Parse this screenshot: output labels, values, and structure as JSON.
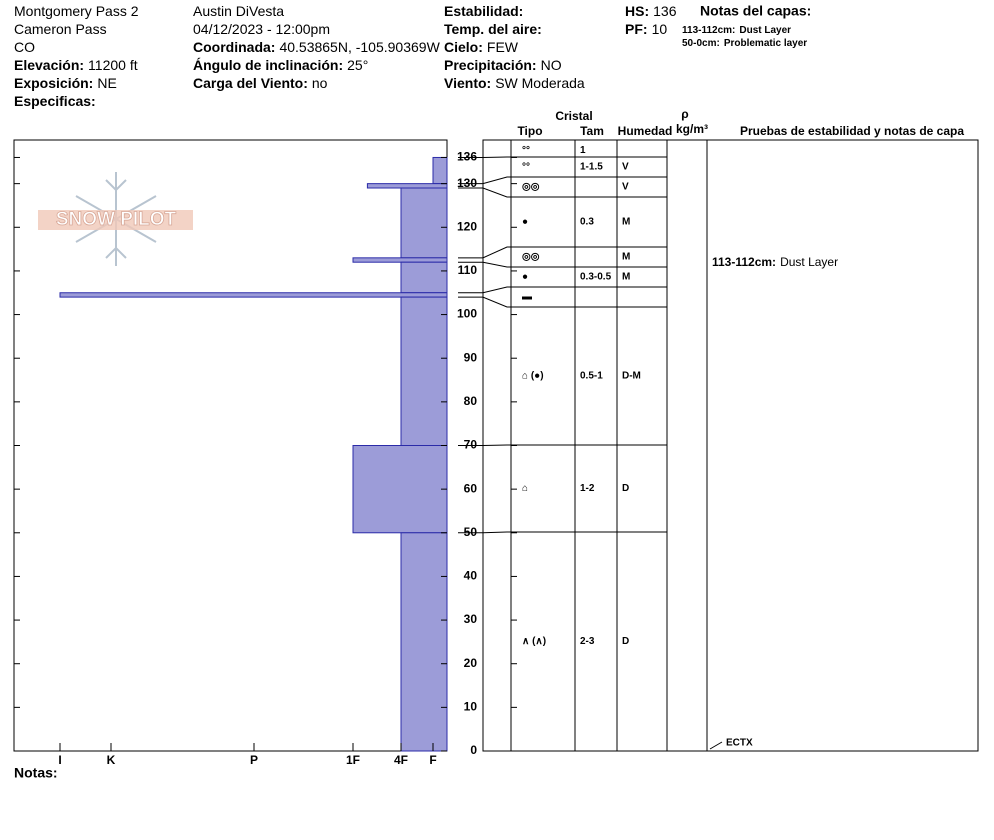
{
  "header": {
    "columns": [
      [
        {
          "value": "Montgomery Pass 2"
        },
        {
          "value": "Cameron Pass"
        },
        {
          "value": "CO"
        },
        {
          "label": "Elevación:",
          "value": "11200 ft"
        },
        {
          "label": "Exposición:",
          "value": "NE"
        },
        {
          "label": "Especificas:"
        }
      ],
      [
        {
          "value": "Austin DiVesta"
        },
        {
          "value": "04/12/2023 - 12:00pm"
        },
        {
          "label": "Coordinada:",
          "value": "40.53865N, -105.90369W"
        },
        {
          "label": "Ángulo de inclinación:",
          "value": "25°"
        },
        {
          "label": "Carga del Viento:",
          "value": "no"
        }
      ],
      [
        {
          "label": "Estabilidad:"
        },
        {
          "label": "Temp. del aire:"
        },
        {
          "label": "Cielo:",
          "value": "FEW"
        },
        {
          "label": "Precipitación:",
          "value": "NO"
        },
        {
          "label": "Viento:",
          "value": "SW Moderada"
        }
      ],
      [
        {
          "label": "HS:",
          "value": 136
        },
        {
          "label": "PF:",
          "value": 10
        }
      ]
    ],
    "layer_notes_title": "Notas del capas:",
    "layer_notes": [
      {
        "label": "113-112cm:",
        "value": "Dust Layer"
      },
      {
        "label": "50-0cm:",
        "value": "Problematic layer"
      }
    ]
  },
  "logo": "SNOW PILOT",
  "notes_label": "Notas:",
  "chart_data": {
    "type": "snow-profile",
    "ylim": [
      0,
      140
    ],
    "yticks": [
      0,
      10,
      20,
      30,
      40,
      50,
      60,
      70,
      80,
      90,
      100,
      110,
      120,
      130,
      136
    ],
    "xlim": [
      0,
      7
    ],
    "xticks": [
      {
        "value": 6,
        "label": "I"
      },
      {
        "value": 5,
        "label": "K"
      },
      {
        "value": 4,
        "label": "P"
      },
      {
        "value": 3,
        "label": "1F"
      },
      {
        "value": 2,
        "label": "4F"
      },
      {
        "value": 1,
        "label": "F"
      }
    ],
    "color": "#9c9cd8",
    "layers": [
      {
        "top": 136,
        "bottom": 130,
        "hardness": 1
      },
      {
        "top": 130,
        "bottom": 129,
        "hardness": 2.7
      },
      {
        "top": 129,
        "bottom": 113,
        "hardness": 2
      },
      {
        "top": 113,
        "bottom": 112,
        "hardness": 3
      },
      {
        "top": 112,
        "bottom": 105,
        "hardness": 2
      },
      {
        "top": 105,
        "bottom": 104,
        "hardness": 6
      },
      {
        "top": 104,
        "bottom": 70,
        "hardness": 2
      },
      {
        "top": 70,
        "bottom": 50,
        "hardness": 3
      },
      {
        "top": 50,
        "bottom": 0,
        "hardness": 2
      }
    ]
  },
  "table": {
    "group_header": "Cristal",
    "columns": [
      "Tipo",
      "Tam",
      "Humedad"
    ],
    "density_symbol": "ρ",
    "density_unit": "kg/m³",
    "notes_header": "Pruebas de estabilidad y notas de capa",
    "rows": [
      {
        "tipo": "°°",
        "tam": "1"
      },
      {
        "tipo": "°°",
        "tam": "1-1.5",
        "humedad": "V"
      },
      {
        "tipo": "◎◎",
        "humedad": "V"
      },
      {
        "tipo": "●",
        "tam": "0.3",
        "humedad": "M"
      },
      {
        "tipo": "◎◎",
        "humedad": "M"
      },
      {
        "tipo": "●",
        "tam": "0.3-0.5",
        "humedad": "M"
      },
      {
        "tipo": "▬"
      },
      {
        "tipo": "⌂ (●)",
        "tam": "0.5-1",
        "humedad": "D-M"
      },
      {
        "tipo": "⌂",
        "tam": "1-2",
        "humedad": "D"
      },
      {
        "tipo": "∧ (∧)",
        "tam": "2-3",
        "humedad": "D"
      }
    ],
    "layer_note": {
      "label": "113-112cm:",
      "value": "Dust Layer"
    },
    "test": "ECTX"
  }
}
